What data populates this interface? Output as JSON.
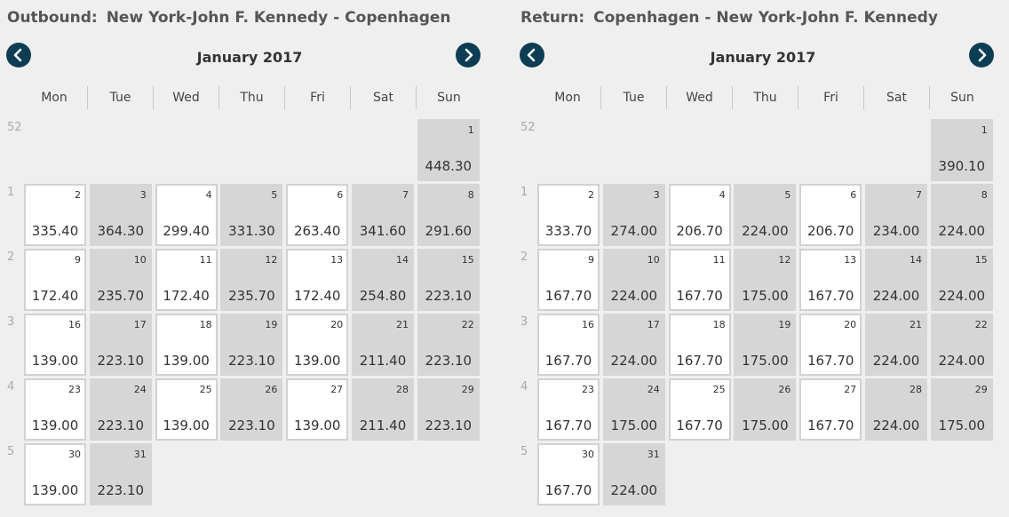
{
  "outbound": {
    "label": "Outbound:",
    "route": "New York-John F. Kennedy - Copenhagen",
    "month": "January 2017",
    "weekdays": [
      "Mon",
      "Tue",
      "Wed",
      "Thu",
      "Fri",
      "Sat",
      "Sun"
    ],
    "weeks": [
      "52",
      "1",
      "2",
      "3",
      "4",
      "5"
    ],
    "days": [
      {
        "day": "1",
        "price": "448.30",
        "row": 0,
        "col": 6,
        "style": "gray"
      },
      {
        "day": "2",
        "price": "335.40",
        "row": 1,
        "col": 0,
        "style": "white"
      },
      {
        "day": "3",
        "price": "364.30",
        "row": 1,
        "col": 1,
        "style": "gray"
      },
      {
        "day": "4",
        "price": "299.40",
        "row": 1,
        "col": 2,
        "style": "white"
      },
      {
        "day": "5",
        "price": "331.30",
        "row": 1,
        "col": 3,
        "style": "gray"
      },
      {
        "day": "6",
        "price": "263.40",
        "row": 1,
        "col": 4,
        "style": "white"
      },
      {
        "day": "7",
        "price": "341.60",
        "row": 1,
        "col": 5,
        "style": "gray"
      },
      {
        "day": "8",
        "price": "291.60",
        "row": 1,
        "col": 6,
        "style": "gray"
      },
      {
        "day": "9",
        "price": "172.40",
        "row": 2,
        "col": 0,
        "style": "white"
      },
      {
        "day": "10",
        "price": "235.70",
        "row": 2,
        "col": 1,
        "style": "gray"
      },
      {
        "day": "11",
        "price": "172.40",
        "row": 2,
        "col": 2,
        "style": "white"
      },
      {
        "day": "12",
        "price": "235.70",
        "row": 2,
        "col": 3,
        "style": "gray"
      },
      {
        "day": "13",
        "price": "172.40",
        "row": 2,
        "col": 4,
        "style": "white"
      },
      {
        "day": "14",
        "price": "254.80",
        "row": 2,
        "col": 5,
        "style": "gray"
      },
      {
        "day": "15",
        "price": "223.10",
        "row": 2,
        "col": 6,
        "style": "gray"
      },
      {
        "day": "16",
        "price": "139.00",
        "row": 3,
        "col": 0,
        "style": "white"
      },
      {
        "day": "17",
        "price": "223.10",
        "row": 3,
        "col": 1,
        "style": "gray"
      },
      {
        "day": "18",
        "price": "139.00",
        "row": 3,
        "col": 2,
        "style": "white"
      },
      {
        "day": "19",
        "price": "223.10",
        "row": 3,
        "col": 3,
        "style": "gray"
      },
      {
        "day": "20",
        "price": "139.00",
        "row": 3,
        "col": 4,
        "style": "white"
      },
      {
        "day": "21",
        "price": "211.40",
        "row": 3,
        "col": 5,
        "style": "gray"
      },
      {
        "day": "22",
        "price": "223.10",
        "row": 3,
        "col": 6,
        "style": "gray"
      },
      {
        "day": "23",
        "price": "139.00",
        "row": 4,
        "col": 0,
        "style": "white"
      },
      {
        "day": "24",
        "price": "223.10",
        "row": 4,
        "col": 1,
        "style": "gray"
      },
      {
        "day": "25",
        "price": "139.00",
        "row": 4,
        "col": 2,
        "style": "white"
      },
      {
        "day": "26",
        "price": "223.10",
        "row": 4,
        "col": 3,
        "style": "gray"
      },
      {
        "day": "27",
        "price": "139.00",
        "row": 4,
        "col": 4,
        "style": "white"
      },
      {
        "day": "28",
        "price": "211.40",
        "row": 4,
        "col": 5,
        "style": "gray"
      },
      {
        "day": "29",
        "price": "223.10",
        "row": 4,
        "col": 6,
        "style": "gray"
      },
      {
        "day": "30",
        "price": "139.00",
        "row": 5,
        "col": 0,
        "style": "white"
      },
      {
        "day": "31",
        "price": "223.10",
        "row": 5,
        "col": 1,
        "style": "gray"
      }
    ]
  },
  "return": {
    "label": "Return:",
    "route": "Copenhagen - New York-John F. Kennedy",
    "month": "January 2017",
    "weekdays": [
      "Mon",
      "Tue",
      "Wed",
      "Thu",
      "Fri",
      "Sat",
      "Sun"
    ],
    "weeks": [
      "52",
      "1",
      "2",
      "3",
      "4",
      "5"
    ],
    "days": [
      {
        "day": "1",
        "price": "390.10",
        "row": 0,
        "col": 6,
        "style": "gray"
      },
      {
        "day": "2",
        "price": "333.70",
        "row": 1,
        "col": 0,
        "style": "white"
      },
      {
        "day": "3",
        "price": "274.00",
        "row": 1,
        "col": 1,
        "style": "gray"
      },
      {
        "day": "4",
        "price": "206.70",
        "row": 1,
        "col": 2,
        "style": "white"
      },
      {
        "day": "5",
        "price": "224.00",
        "row": 1,
        "col": 3,
        "style": "gray"
      },
      {
        "day": "6",
        "price": "206.70",
        "row": 1,
        "col": 4,
        "style": "white"
      },
      {
        "day": "7",
        "price": "234.00",
        "row": 1,
        "col": 5,
        "style": "gray"
      },
      {
        "day": "8",
        "price": "224.00",
        "row": 1,
        "col": 6,
        "style": "gray"
      },
      {
        "day": "9",
        "price": "167.70",
        "row": 2,
        "col": 0,
        "style": "white"
      },
      {
        "day": "10",
        "price": "224.00",
        "row": 2,
        "col": 1,
        "style": "gray"
      },
      {
        "day": "11",
        "price": "167.70",
        "row": 2,
        "col": 2,
        "style": "white"
      },
      {
        "day": "12",
        "price": "175.00",
        "row": 2,
        "col": 3,
        "style": "gray"
      },
      {
        "day": "13",
        "price": "167.70",
        "row": 2,
        "col": 4,
        "style": "white"
      },
      {
        "day": "14",
        "price": "224.00",
        "row": 2,
        "col": 5,
        "style": "gray"
      },
      {
        "day": "15",
        "price": "224.00",
        "row": 2,
        "col": 6,
        "style": "gray"
      },
      {
        "day": "16",
        "price": "167.70",
        "row": 3,
        "col": 0,
        "style": "white"
      },
      {
        "day": "17",
        "price": "224.00",
        "row": 3,
        "col": 1,
        "style": "gray"
      },
      {
        "day": "18",
        "price": "167.70",
        "row": 3,
        "col": 2,
        "style": "white"
      },
      {
        "day": "19",
        "price": "175.00",
        "row": 3,
        "col": 3,
        "style": "gray"
      },
      {
        "day": "20",
        "price": "167.70",
        "row": 3,
        "col": 4,
        "style": "white"
      },
      {
        "day": "21",
        "price": "224.00",
        "row": 3,
        "col": 5,
        "style": "gray"
      },
      {
        "day": "22",
        "price": "224.00",
        "row": 3,
        "col": 6,
        "style": "gray"
      },
      {
        "day": "23",
        "price": "167.70",
        "row": 4,
        "col": 0,
        "style": "white"
      },
      {
        "day": "24",
        "price": "175.00",
        "row": 4,
        "col": 1,
        "style": "gray"
      },
      {
        "day": "25",
        "price": "167.70",
        "row": 4,
        "col": 2,
        "style": "white"
      },
      {
        "day": "26",
        "price": "175.00",
        "row": 4,
        "col": 3,
        "style": "gray"
      },
      {
        "day": "27",
        "price": "167.70",
        "row": 4,
        "col": 4,
        "style": "white"
      },
      {
        "day": "28",
        "price": "224.00",
        "row": 4,
        "col": 5,
        "style": "gray"
      },
      {
        "day": "29",
        "price": "175.00",
        "row": 4,
        "col": 6,
        "style": "gray"
      },
      {
        "day": "30",
        "price": "167.70",
        "row": 5,
        "col": 0,
        "style": "white"
      },
      {
        "day": "31",
        "price": "224.00",
        "row": 5,
        "col": 1,
        "style": "gray"
      }
    ]
  },
  "icons": {
    "prev": "chevron-left-icon",
    "next": "chevron-right-icon"
  },
  "colors": {
    "nav_button": "#0d3d53",
    "cell_gray": "#d6d6d6",
    "cell_white": "#ffffff",
    "background": "#efefef"
  }
}
